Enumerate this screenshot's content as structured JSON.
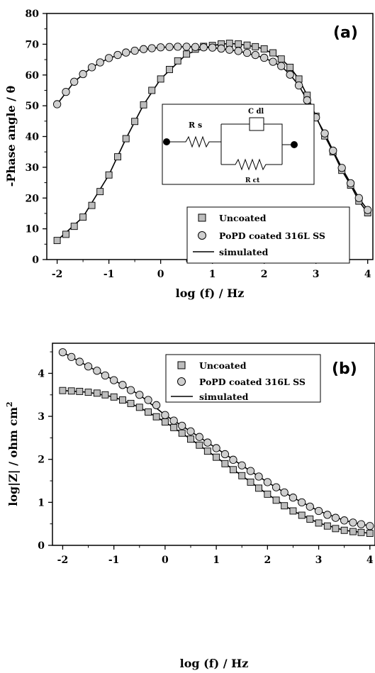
{
  "chart_data": [
    {
      "type": "scatter",
      "panel_label": "(a)",
      "xlabel": "log (f) / Hz",
      "ylabel": "-Phase angle / θ",
      "xlim": [
        -2.2,
        4.1
      ],
      "ylim": [
        0,
        80
      ],
      "xticks": [
        -2,
        -1,
        0,
        1,
        2,
        3,
        4
      ],
      "yticks": [
        0,
        10,
        20,
        30,
        40,
        50,
        60,
        70,
        80
      ],
      "legend": {
        "position": "bottom-right",
        "entries": [
          "Uncoated",
          "PoPD coated 316L SS",
          "simulated"
        ]
      },
      "inset_circuit": {
        "labels": [
          "R s",
          "C dl",
          "R ct"
        ]
      },
      "series": [
        {
          "name": "Uncoated",
          "marker": "square",
          "x": [
            -2.0,
            -1.83,
            -1.67,
            -1.5,
            -1.33,
            -1.17,
            -1.0,
            -0.83,
            -0.67,
            -0.5,
            -0.33,
            -0.17,
            0.0,
            0.17,
            0.33,
            0.5,
            0.67,
            0.83,
            1.0,
            1.17,
            1.33,
            1.5,
            1.67,
            1.83,
            2.0,
            2.17,
            2.33,
            2.5,
            2.67,
            2.83,
            3.0,
            3.17,
            3.33,
            3.5,
            3.67,
            3.83,
            4.0
          ],
          "y": [
            6.2,
            8.2,
            10.8,
            13.8,
            17.6,
            22.1,
            27.5,
            33.4,
            39.3,
            44.9,
            50.3,
            55.0,
            58.7,
            61.8,
            64.6,
            66.8,
            68.4,
            69.3,
            69.6,
            70.1,
            70.3,
            70.1,
            69.7,
            69.2,
            68.5,
            67.2,
            65.2,
            62.5,
            58.7,
            53.4,
            46.6,
            40.2,
            35.0,
            29.0,
            24.2,
            19.0,
            15.2
          ]
        },
        {
          "name": "PoPD coated 316L SS",
          "marker": "circle",
          "x": [
            -2.0,
            -1.83,
            -1.67,
            -1.5,
            -1.33,
            -1.17,
            -1.0,
            -0.83,
            -0.67,
            -0.5,
            -0.33,
            -0.17,
            0.0,
            0.17,
            0.33,
            0.5,
            0.67,
            0.83,
            1.0,
            1.17,
            1.33,
            1.5,
            1.67,
            1.83,
            2.0,
            2.17,
            2.33,
            2.5,
            2.67,
            2.83,
            3.0,
            3.17,
            3.33,
            3.5,
            3.67,
            3.83,
            4.0
          ],
          "y": [
            50.5,
            54.5,
            57.8,
            60.3,
            62.5,
            64.1,
            65.5,
            66.5,
            67.3,
            67.9,
            68.4,
            68.7,
            69.0,
            69.1,
            69.2,
            69.2,
            69.1,
            69.0,
            68.9,
            68.6,
            68.2,
            67.8,
            67.2,
            66.5,
            65.6,
            64.3,
            62.9,
            60.1,
            56.6,
            51.8,
            46.2,
            41.0,
            35.4,
            29.8,
            24.8,
            20.0,
            16.1
          ]
        },
        {
          "name": "simulated",
          "line": true,
          "x": [
            -2.0,
            -1.5,
            -1.0,
            -0.67,
            -0.33,
            0.0,
            0.5,
            1.0,
            1.33,
            1.67,
            2.0,
            2.33,
            2.5,
            2.67,
            2.83,
            3.0,
            3.17,
            3.33,
            3.5,
            3.67,
            3.83,
            4.0
          ],
          "y": [
            6.2,
            13.8,
            27.5,
            39.3,
            50.3,
            58.7,
            66.8,
            69.6,
            70.3,
            69.7,
            68.5,
            65.2,
            62.5,
            58.7,
            53.4,
            46.6,
            40.2,
            35.0,
            29.0,
            24.2,
            19.0,
            15.2
          ]
        },
        {
          "name": "simulated",
          "line": true,
          "x": [
            -2.0,
            -1.67,
            -1.33,
            -1.0,
            -0.5,
            0.0,
            0.5,
            1.0,
            1.5,
            2.0,
            2.33,
            2.5,
            2.67,
            2.83,
            3.0,
            3.17,
            3.33,
            3.5,
            3.67,
            3.83,
            4.0
          ],
          "y": [
            50.5,
            57.8,
            62.5,
            65.5,
            67.9,
            69.0,
            69.2,
            68.9,
            67.8,
            65.6,
            62.9,
            60.1,
            56.6,
            51.8,
            46.2,
            41.0,
            35.4,
            29.8,
            24.8,
            20.0,
            16.1
          ]
        }
      ]
    },
    {
      "type": "scatter",
      "panel_label": "(b)",
      "xlabel": "log (f) /  Hz",
      "ylabel": "log|Z| / ohm cm",
      "ylabel_sup": "2",
      "xlim": [
        -2.2,
        4.1
      ],
      "ylim": [
        0,
        4.7
      ],
      "xticks": [
        -2,
        -1,
        0,
        1,
        2,
        3,
        4
      ],
      "yticks": [
        0,
        1,
        2,
        3,
        4
      ],
      "legend": {
        "position": "top-right",
        "entries": [
          "Uncoated",
          "PoPD coated 316L SS",
          "simulated"
        ]
      },
      "series": [
        {
          "name": "Uncoated",
          "marker": "square",
          "x": [
            -2.0,
            -1.83,
            -1.67,
            -1.5,
            -1.33,
            -1.17,
            -1.0,
            -0.83,
            -0.67,
            -0.5,
            -0.33,
            -0.17,
            0.0,
            0.17,
            0.33,
            0.5,
            0.67,
            0.83,
            1.0,
            1.17,
            1.33,
            1.5,
            1.67,
            1.83,
            2.0,
            2.17,
            2.33,
            2.5,
            2.67,
            2.83,
            3.0,
            3.17,
            3.33,
            3.5,
            3.67,
            3.83,
            4.0
          ],
          "y": [
            3.6,
            3.59,
            3.58,
            3.56,
            3.54,
            3.5,
            3.45,
            3.38,
            3.3,
            3.21,
            3.1,
            2.99,
            2.87,
            2.74,
            2.61,
            2.47,
            2.33,
            2.19,
            2.05,
            1.9,
            1.76,
            1.62,
            1.47,
            1.33,
            1.19,
            1.05,
            0.92,
            0.8,
            0.7,
            0.61,
            0.52,
            0.45,
            0.39,
            0.35,
            0.32,
            0.3,
            0.28
          ]
        },
        {
          "name": "PoPD coated 316L SS",
          "marker": "circle",
          "x": [
            -2.0,
            -1.83,
            -1.67,
            -1.5,
            -1.33,
            -1.17,
            -1.0,
            -0.83,
            -0.67,
            -0.5,
            -0.33,
            -0.17,
            0.0,
            0.17,
            0.33,
            0.5,
            0.67,
            0.83,
            1.0,
            1.17,
            1.33,
            1.5,
            1.67,
            1.83,
            2.0,
            2.17,
            2.33,
            2.5,
            2.67,
            2.83,
            3.0,
            3.17,
            3.33,
            3.5,
            3.67,
            3.83,
            4.0
          ],
          "y": [
            4.49,
            4.38,
            4.27,
            4.16,
            4.06,
            3.95,
            3.84,
            3.73,
            3.61,
            3.5,
            3.38,
            3.26,
            3.03,
            2.9,
            2.78,
            2.65,
            2.52,
            2.39,
            2.26,
            2.12,
            1.99,
            1.86,
            1.73,
            1.6,
            1.47,
            1.35,
            1.23,
            1.11,
            1.0,
            0.9,
            0.8,
            0.71,
            0.64,
            0.58,
            0.53,
            0.49,
            0.45
          ]
        },
        {
          "name": "simulated",
          "line": true,
          "x": [
            -2.0,
            -1.5,
            -1.0,
            -0.5,
            0.0,
            0.5,
            1.0,
            1.5,
            2.0,
            2.5,
            3.0,
            3.5,
            4.0
          ],
          "y": [
            3.6,
            3.56,
            3.45,
            3.21,
            2.87,
            2.47,
            2.05,
            1.62,
            1.19,
            0.8,
            0.52,
            0.35,
            0.28
          ]
        },
        {
          "name": "simulated",
          "line": true,
          "x": [
            -2.0,
            -1.5,
            -1.0,
            -0.5,
            0.0,
            0.5,
            1.0,
            1.5,
            2.0,
            2.5,
            3.0,
            3.5,
            4.0
          ],
          "y": [
            4.49,
            4.16,
            3.84,
            3.5,
            3.03,
            2.65,
            2.26,
            1.86,
            1.47,
            1.11,
            0.8,
            0.58,
            0.45
          ]
        }
      ]
    }
  ]
}
